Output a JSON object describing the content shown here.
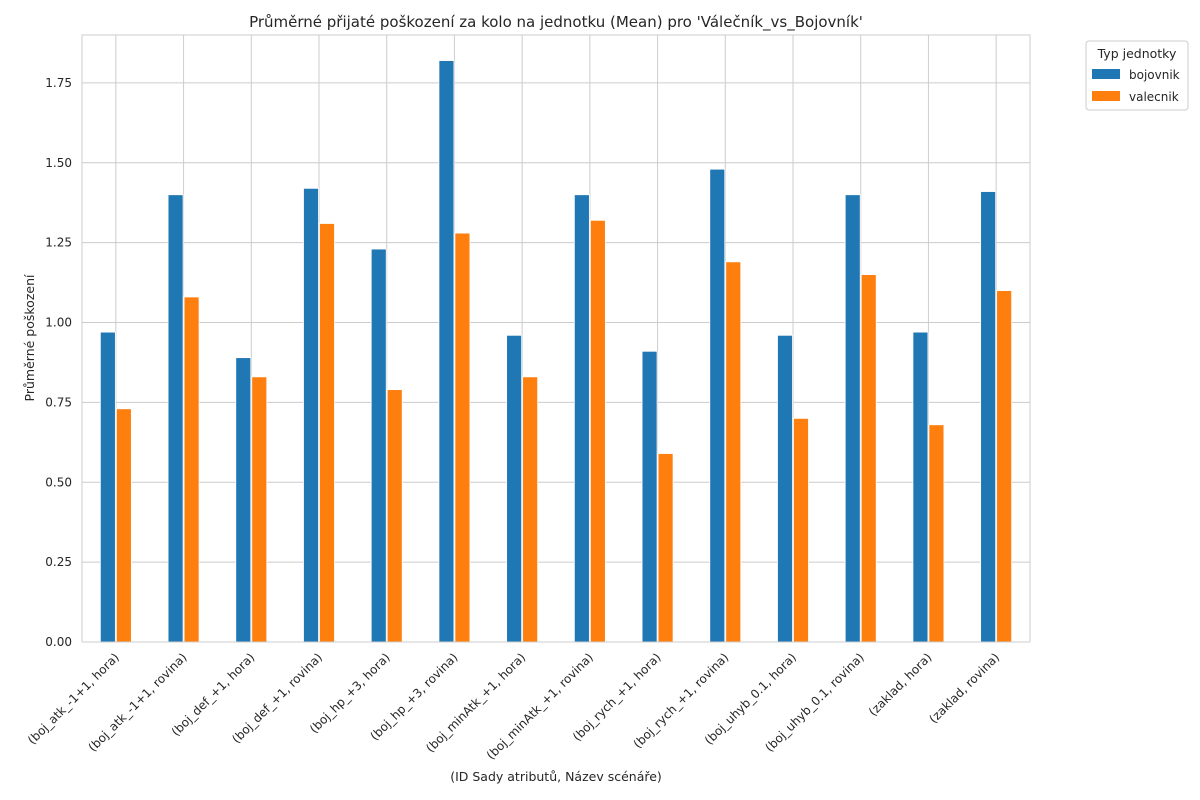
{
  "chart_data": {
    "type": "bar",
    "title": "Průměrné přijaté poškození za kolo na jednotku (Mean) pro 'Válečník_vs_Bojovník'",
    "xlabel": "(ID Sady atributů, Název scénáře)",
    "ylabel": "Průměrné poškození",
    "ylim": [
      0,
      1.9
    ],
    "yticks": [
      "0.00",
      "0.25",
      "0.50",
      "0.75",
      "1.00",
      "1.25",
      "1.50",
      "1.75"
    ],
    "grid": true,
    "legend_position": "upper right outside",
    "legend_title": "Typ jednotky",
    "categories": [
      "(boj_atk_-1+1, hora)",
      "(boj_atk_-1+1, rovina)",
      "(boj_def_+1, hora)",
      "(boj_def_+1, rovina)",
      "(boj_hp_+3, hora)",
      "(boj_hp_+3, rovina)",
      "(boj_minAtk_+1, hora)",
      "(boj_minAtk_+1, rovina)",
      "(boj_rych_+1, hora)",
      "(boj_rych_+1, rovina)",
      "(boj_uhyb_0.1, hora)",
      "(boj_uhyb_0.1, rovina)",
      "(zaklad, hora)",
      "(zaklad, rovina)"
    ],
    "series": [
      {
        "name": "bojovnik",
        "color": "#1f77b4",
        "values": [
          0.97,
          1.4,
          0.89,
          1.42,
          1.23,
          1.82,
          0.96,
          1.4,
          0.91,
          1.48,
          0.96,
          1.4,
          0.97,
          1.41
        ]
      },
      {
        "name": "valecnik",
        "color": "#ff7f0e",
        "values": [
          0.73,
          1.08,
          0.83,
          1.31,
          0.79,
          1.28,
          0.83,
          1.32,
          0.59,
          1.19,
          0.7,
          1.15,
          0.68,
          1.1
        ]
      }
    ]
  }
}
